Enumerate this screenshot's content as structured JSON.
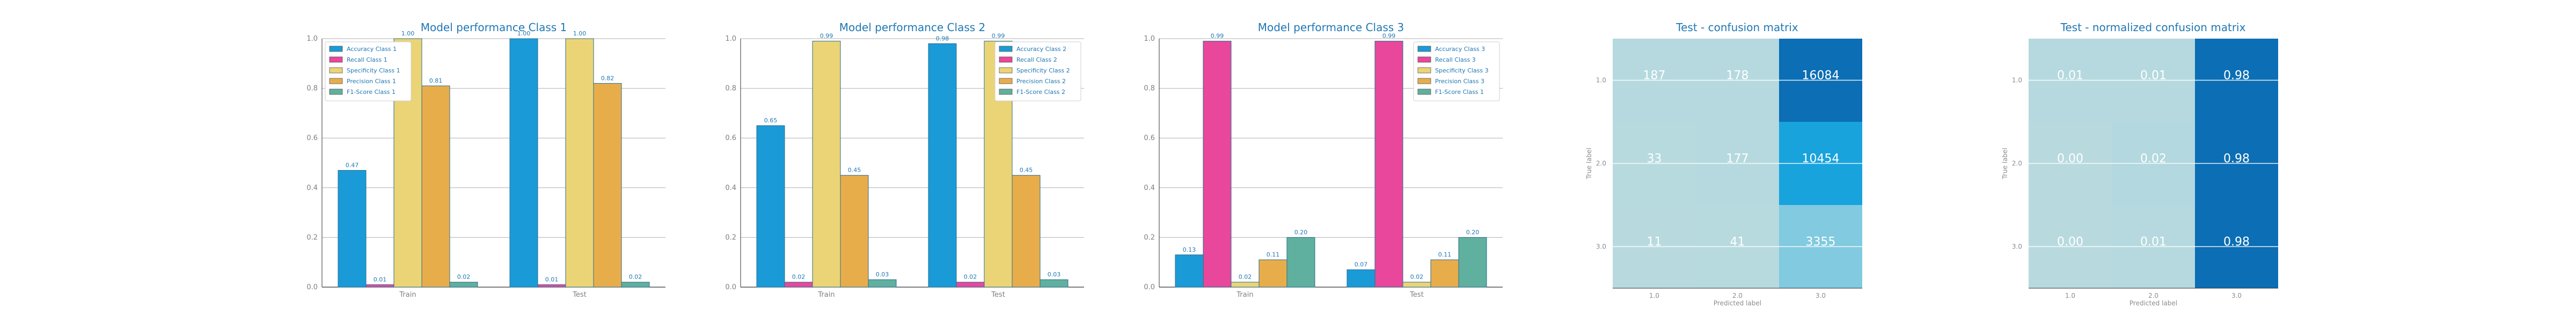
{
  "chart_data": [
    {
      "type": "bar",
      "title": "Model performance Class 1",
      "categories": [
        "Train",
        "Test"
      ],
      "ylim": [
        0,
        1.0
      ],
      "yticks": [
        "0.0",
        "0.2",
        "0.4",
        "0.6",
        "0.8",
        "1.0"
      ],
      "legend_placement": "upper-left",
      "series": [
        {
          "name": "Accuracy Class 1",
          "color": "#1a9bd7",
          "values": [
            0.47,
            1.0
          ],
          "labels": [
            "0.47",
            "1.00"
          ]
        },
        {
          "name": "Recall Class 1",
          "color": "#e8479b",
          "values": [
            0.01,
            0.01
          ],
          "labels": [
            "0.01",
            "0.01"
          ]
        },
        {
          "name": "Specificity Class 1",
          "color": "#ebd476",
          "values": [
            1.0,
            1.0
          ],
          "labels": [
            "1.00",
            "1.00"
          ]
        },
        {
          "name": "Precision Class 1",
          "color": "#e8ad4b",
          "values": [
            0.81,
            0.82
          ],
          "labels": [
            "0.81",
            "0.82"
          ]
        },
        {
          "name": "F1-Score Class 1",
          "color": "#5fb09e",
          "values": [
            0.02,
            0.02
          ],
          "labels": [
            "0.02",
            "0.02"
          ]
        }
      ]
    },
    {
      "type": "bar",
      "title": "Model performance Class 2",
      "categories": [
        "Train",
        "Test"
      ],
      "ylim": [
        0,
        1.0
      ],
      "yticks": [
        "0.0",
        "0.2",
        "0.4",
        "0.6",
        "0.8",
        "1.0"
      ],
      "legend_placement": "upper-right",
      "series": [
        {
          "name": "Accuracy Class 2",
          "color": "#1a9bd7",
          "values": [
            0.65,
            0.98
          ],
          "labels": [
            "0.65",
            "0.98"
          ]
        },
        {
          "name": "Recall Class 2",
          "color": "#e8479b",
          "values": [
            0.02,
            0.02
          ],
          "labels": [
            "0.02",
            "0.02"
          ]
        },
        {
          "name": "Specificity Class 2",
          "color": "#ebd476",
          "values": [
            0.99,
            0.99
          ],
          "labels": [
            "0.99",
            "0.99"
          ]
        },
        {
          "name": "Precision Class 2",
          "color": "#e8ad4b",
          "values": [
            0.45,
            0.45
          ],
          "labels": [
            "0.45",
            "0.45"
          ]
        },
        {
          "name": "F1-Score Class 2",
          "color": "#5fb09e",
          "values": [
            0.03,
            0.03
          ],
          "labels": [
            "0.03",
            "0.03"
          ]
        }
      ]
    },
    {
      "type": "bar",
      "title": "Model performance Class 3",
      "categories": [
        "Train",
        "Test"
      ],
      "ylim": [
        0,
        1.0
      ],
      "yticks": [
        "0.0",
        "0.2",
        "0.4",
        "0.6",
        "0.8",
        "1.0"
      ],
      "legend_placement": "upper-right",
      "series": [
        {
          "name": "Accuracy Class 3",
          "color": "#1a9bd7",
          "values": [
            0.13,
            0.07
          ],
          "labels": [
            "0.13",
            "0.07"
          ]
        },
        {
          "name": "Recall Class 3",
          "color": "#e8479b",
          "values": [
            0.99,
            0.99
          ],
          "labels": [
            "0.99",
            "0.99"
          ]
        },
        {
          "name": "Specificity Class 3",
          "color": "#ebd476",
          "values": [
            0.02,
            0.02
          ],
          "labels": [
            "0.02",
            "0.02"
          ]
        },
        {
          "name": "Precision Class 3",
          "color": "#e8ad4b",
          "values": [
            0.11,
            0.11
          ],
          "labels": [
            "0.11",
            "0.11"
          ]
        },
        {
          "name": "F1-Score Class 1",
          "color": "#5fb09e",
          "values": [
            0.2,
            0.2
          ],
          "labels": [
            "0.20",
            "0.20"
          ]
        }
      ]
    },
    {
      "type": "heatmap",
      "title": "Test - confusion matrix",
      "xlabel": "Predicted label",
      "ylabel": "True label",
      "x_tick_labels": [
        "1.0",
        "2.0",
        "3.0"
      ],
      "y_tick_labels": [
        "1.0",
        "2.0",
        "3.0"
      ],
      "values": [
        [
          187,
          178,
          16084
        ],
        [
          33,
          177,
          10454
        ],
        [
          11,
          41,
          3355
        ]
      ],
      "labels": [
        [
          "187",
          "178",
          "16084"
        ],
        [
          "33",
          "177",
          "10454"
        ],
        [
          "11",
          "41",
          "3355"
        ]
      ]
    },
    {
      "type": "heatmap",
      "title": "Test - normalized confusion matrix",
      "xlabel": "Predicted label",
      "ylabel": "True label",
      "x_tick_labels": [
        "1.0",
        "2.0",
        "3.0"
      ],
      "y_tick_labels": [
        "1.0",
        "2.0",
        "3.0"
      ],
      "values": [
        [
          0.01,
          0.01,
          0.98
        ],
        [
          0.0,
          0.02,
          0.98
        ],
        [
          0.0,
          0.01,
          0.98
        ]
      ],
      "labels": [
        [
          "0.01",
          "0.01",
          "0.98"
        ],
        [
          "0.00",
          "0.02",
          "0.98"
        ],
        [
          "0.00",
          "0.01",
          "0.98"
        ]
      ]
    }
  ]
}
